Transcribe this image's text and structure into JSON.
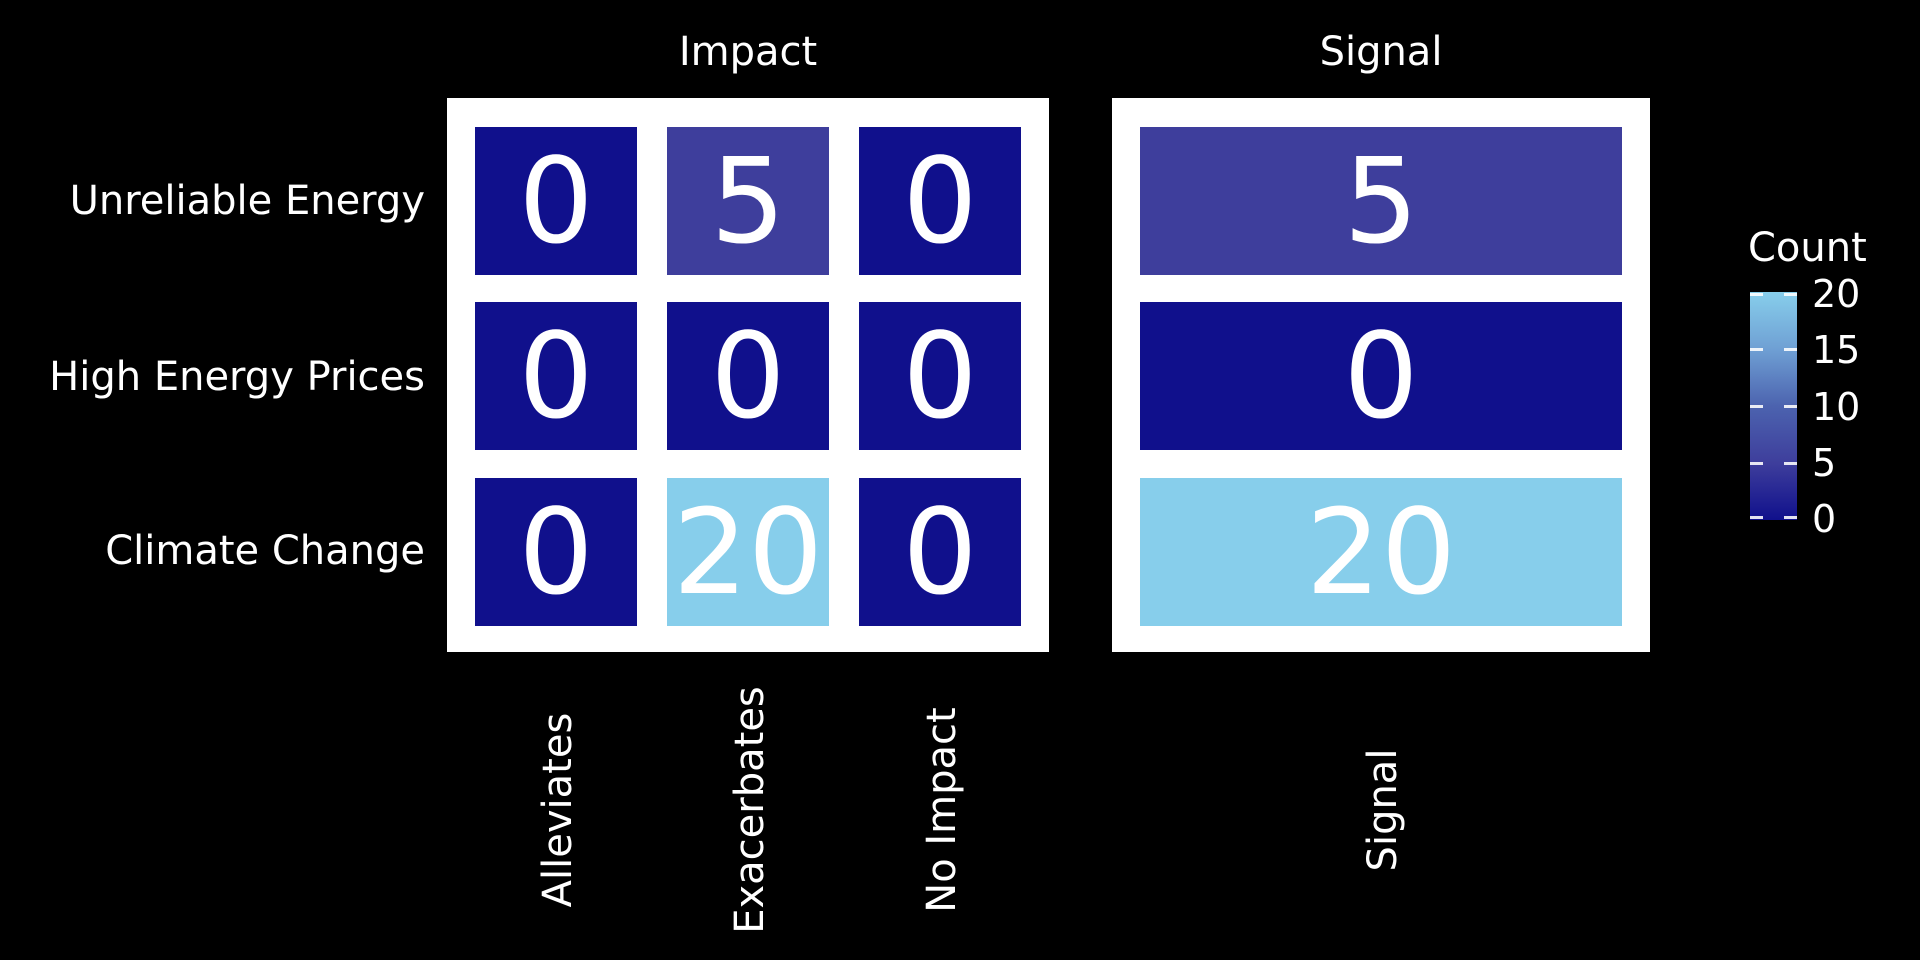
{
  "rows": [
    "Unreliable Energy",
    "High Energy Prices",
    "Climate Change"
  ],
  "chart_data": {
    "type": "heatmap",
    "facets": [
      {
        "title": "Impact",
        "x_categories": [
          "Alleviates",
          "Exacerbates",
          "No Impact"
        ],
        "y_categories": [
          "Unreliable Energy",
          "High Energy Prices",
          "Climate Change"
        ],
        "values": [
          [
            0,
            5,
            0
          ],
          [
            0,
            0,
            0
          ],
          [
            0,
            20,
            0
          ]
        ]
      },
      {
        "title": "Signal",
        "x_categories": [
          "Signal"
        ],
        "y_categories": [
          "Unreliable Energy",
          "High Energy Prices",
          "Climate Change"
        ],
        "values": [
          [
            5
          ],
          [
            0
          ],
          [
            20
          ]
        ]
      }
    ],
    "legend": {
      "title": "Count",
      "ticks": [
        20,
        15,
        10,
        5,
        0
      ],
      "min": 0,
      "max": 20,
      "position": "right",
      "gradient_bottom_to_top": [
        "#10108C",
        "#3E3E9C",
        "#4C63AF",
        "#6FA0D4",
        "#87CEEB"
      ]
    },
    "colors": {
      "0": "#10108C",
      "5": "#3E3E9C",
      "20": "#87CEEB"
    },
    "style": {
      "figure_background": "#000000",
      "panel_background": "#FFFFFF",
      "text_color": "#FFFFFF"
    },
    "grid": false
  }
}
